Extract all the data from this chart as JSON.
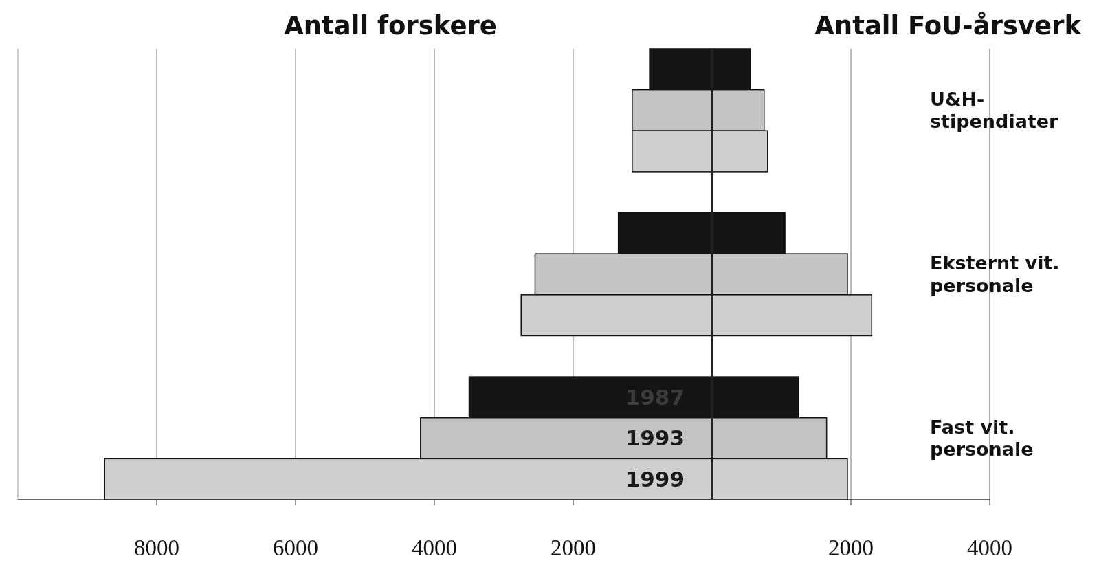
{
  "chart_data": [
    {
      "type": "bar",
      "orientation": "horizontal",
      "title": "Antall forskere",
      "categories": [
        null,
        null,
        null
      ],
      "series": [
        {
          "name": "1987",
          "color": "#151515",
          "values": [
            900,
            1350,
            3500
          ]
        },
        {
          "name": "1993",
          "color": "#c4c4c4",
          "values": [
            1150,
            2550,
            4200
          ]
        },
        {
          "name": "1999",
          "color": "#cfcfcf",
          "values": [
            1150,
            2750,
            8750
          ]
        }
      ],
      "xlim": [
        10000,
        0
      ],
      "xticks": [
        8000,
        6000,
        4000,
        2000
      ],
      "grid": "x",
      "tick_labels": "x"
    },
    {
      "type": "bar",
      "orientation": "horizontal",
      "title": "Antall FoU-årsverk",
      "categories": [
        "U&H-\nstipendiater",
        "Eksternt vit.\npersonale",
        "Fast vit.\npersonale"
      ],
      "series": [
        {
          "color": "#151515",
          "values": [
            550,
            1050,
            1250
          ]
        },
        {
          "color": "#c4c4c4",
          "values": [
            750,
            1950,
            1650
          ]
        },
        {
          "color": "#cfcfcf",
          "values": [
            800,
            2300,
            1950
          ]
        }
      ],
      "xlim": [
        0,
        4000
      ],
      "xticks": [
        2000,
        4000
      ],
      "grid": "x"
    }
  ]
}
